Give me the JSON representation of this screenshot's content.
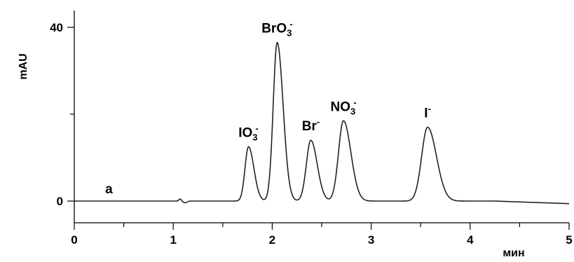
{
  "chart_data": {
    "type": "line",
    "title": "",
    "panel_label": "a",
    "xlabel": "мин",
    "ylabel": "mAU",
    "xlim": [
      0,
      5
    ],
    "ylim": [
      -5,
      43
    ],
    "x_ticks": [
      0,
      1,
      2,
      3,
      4,
      5
    ],
    "x_tick_labels": [
      "0",
      "1",
      "2",
      "3",
      "4",
      "5"
    ],
    "x_minor_ticks": [
      0.5,
      1.5,
      2.5,
      3.5,
      4.5
    ],
    "y_ticks": [
      0,
      40
    ],
    "y_tick_labels": [
      "0",
      "40"
    ],
    "y_minor_ticks": [
      20
    ],
    "grid": false,
    "baseline": 0,
    "baseline_drift_end": -0.6,
    "artifacts": [
      {
        "x": 1.07,
        "height": 0.5,
        "width": 0.012
      },
      {
        "x": 1.12,
        "height": -0.4,
        "width": 0.02
      }
    ],
    "peaks": [
      {
        "x": 1.76,
        "height": 12.5,
        "sigma_left": 0.035,
        "sigma_right": 0.055,
        "label": {
          "main": "IO",
          "sub": "3",
          "sup": "-"
        }
      },
      {
        "x": 2.05,
        "height": 36.5,
        "sigma_left": 0.04,
        "sigma_right": 0.06,
        "label": {
          "main": "BrO",
          "sub": "3",
          "sup": "-"
        }
      },
      {
        "x": 2.39,
        "height": 14.0,
        "sigma_left": 0.045,
        "sigma_right": 0.065,
        "label": {
          "main": "Br",
          "sub": "",
          "sup": "-"
        }
      },
      {
        "x": 2.72,
        "height": 18.5,
        "sigma_left": 0.05,
        "sigma_right": 0.075,
        "label": {
          "main": "NO",
          "sub": "3",
          "sup": "-"
        }
      },
      {
        "x": 3.57,
        "height": 17.0,
        "sigma_left": 0.06,
        "sigma_right": 0.09,
        "label": {
          "main": "I",
          "sub": "",
          "sup": "-"
        }
      }
    ]
  }
}
